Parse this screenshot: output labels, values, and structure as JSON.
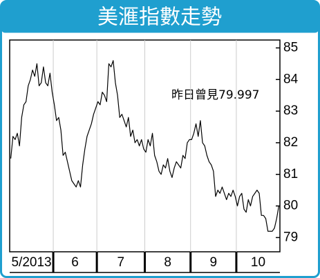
{
  "chart_data": {
    "type": "line",
    "title": "美滙指數走勢",
    "annotation": "昨日曾見79.997",
    "color": "#000000",
    "y_axis_side": "right",
    "ylim": [
      78.55,
      85.25
    ],
    "yticks": [
      79,
      80,
      81,
      82,
      83,
      84,
      85
    ],
    "categories": [
      "5/2013",
      null,
      null,
      null,
      null,
      null,
      null,
      null,
      null,
      null,
      null,
      null,
      null,
      null,
      null,
      null,
      null,
      null,
      null,
      null,
      "6",
      null,
      null,
      null,
      null,
      null,
      null,
      null,
      null,
      null,
      null,
      null,
      null,
      null,
      null,
      null,
      null,
      null,
      null,
      null,
      "7",
      null,
      null,
      null,
      null,
      null,
      null,
      null,
      null,
      null,
      null,
      null,
      null,
      null,
      null,
      null,
      null,
      null,
      null,
      null,
      null,
      null,
      "8",
      null,
      null,
      null,
      null,
      null,
      null,
      null,
      null,
      null,
      null,
      null,
      null,
      null,
      null,
      null,
      null,
      null,
      null,
      null,
      null,
      "9",
      null,
      null,
      null,
      null,
      null,
      null,
      null,
      null,
      null,
      null,
      null,
      null,
      null,
      null,
      null,
      null,
      null,
      null,
      null,
      null,
      "10",
      null,
      null,
      null,
      null,
      null,
      null,
      null,
      null,
      null,
      null,
      null,
      null,
      null,
      null,
      null,
      null,
      null,
      null,
      null
    ],
    "values": [
      81.5,
      82.2,
      82.1,
      82.3,
      81.9,
      82.8,
      83.2,
      83.3,
      83.8,
      84.0,
      84.3,
      84.1,
      84.5,
      83.8,
      83.9,
      84.4,
      83.9,
      83.8,
      84.2,
      83.6,
      83.2,
      82.7,
      82.8,
      82.4,
      81.6,
      81.7,
      81.4,
      81.1,
      80.8,
      80.7,
      80.6,
      80.8,
      80.6,
      81.3,
      81.8,
      82.2,
      82.4,
      82.6,
      82.9,
      83.1,
      83.3,
      83.2,
      83.6,
      83.5,
      83.3,
      84.5,
      84.4,
      84.6,
      83.9,
      83.5,
      82.8,
      82.9,
      82.7,
      82.5,
      82.8,
      82.2,
      82.4,
      82.0,
      82.1,
      81.9,
      82.1,
      81.8,
      81.7,
      82.1,
      81.9,
      82.3,
      81.6,
      81.4,
      81.1,
      81.0,
      81.3,
      81.2,
      81.5,
      81.1,
      80.9,
      81.2,
      81.4,
      81.3,
      81.2,
      81.6,
      81.5,
      82.0,
      82.1,
      82.1,
      82.3,
      82.6,
      82.2,
      82.7,
      82.0,
      81.9,
      81.6,
      81.4,
      81.3,
      81.1,
      80.3,
      80.5,
      80.4,
      80.6,
      80.4,
      80.2,
      80.4,
      80.3,
      80.5,
      80.3,
      80.0,
      80.3,
      80.4,
      79.9,
      79.8,
      80.2,
      80.0,
      80.3,
      80.4,
      80.5,
      80.4,
      79.7,
      79.7,
      79.6,
      79.2,
      79.2,
      79.2,
      79.3,
      79.6,
      80.0
    ]
  }
}
